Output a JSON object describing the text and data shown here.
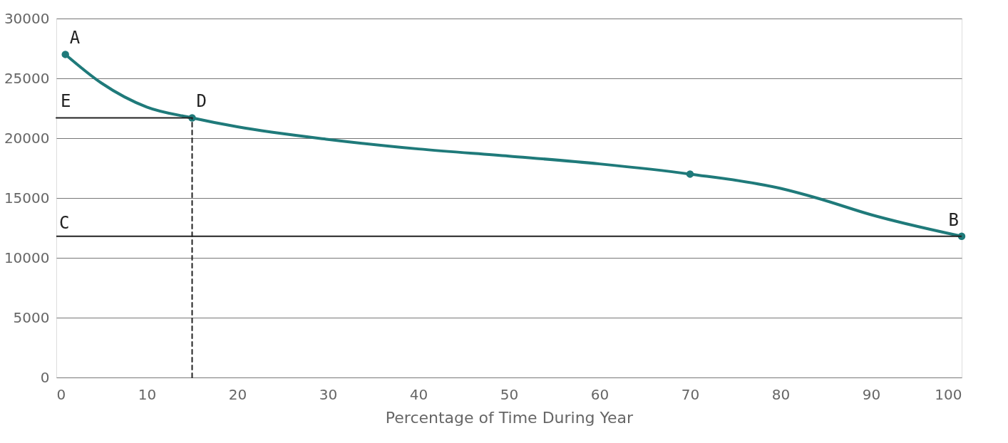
{
  "chart_data": {
    "type": "line",
    "xlabel": "Percentage of Time During Year",
    "xlim": [
      0,
      100
    ],
    "xticks": [
      0,
      10,
      20,
      30,
      40,
      50,
      60,
      70,
      80,
      90,
      100
    ],
    "ylim": [
      0,
      30000
    ],
    "yticks": [
      0,
      5000,
      10000,
      15000,
      20000,
      25000,
      30000
    ],
    "grid": "y",
    "series": [
      {
        "color": "#1f7a7a",
        "x": [
          1,
          5,
          10,
          15,
          20,
          30,
          40,
          50,
          60,
          70,
          80,
          84,
          90,
          100
        ],
        "values": [
          27000,
          24600,
          22600,
          21700,
          20950,
          19900,
          19100,
          18500,
          17850,
          17000,
          15800,
          15000,
          13600,
          11800
        ]
      },
      {
        "type": "scatter",
        "color": "#1f7a7a",
        "marker": "circle",
        "x": [
          1,
          15,
          70,
          100
        ],
        "values": [
          27000,
          21700,
          17000,
          11800
        ]
      },
      {
        "type": "line",
        "color": "#222222",
        "x": [
          0,
          15
        ],
        "values": [
          21700,
          21700
        ]
      },
      {
        "type": "line",
        "color": "#222222",
        "line_style": "dashed",
        "x": [
          15,
          15
        ],
        "values": [
          0,
          21700
        ]
      }
    ],
    "ref_lines": [
      {
        "axis": "y",
        "value": 11800,
        "label": "C",
        "color": "#222222"
      }
    ],
    "annotations": [
      {
        "text": "A",
        "x": 1,
        "y": 27000
      },
      {
        "text": "D",
        "x": 15,
        "y": 21700
      },
      {
        "text": "B",
        "x": 100,
        "y": 11800
      },
      {
        "text": "E",
        "x": 0,
        "y": 21700
      }
    ]
  }
}
